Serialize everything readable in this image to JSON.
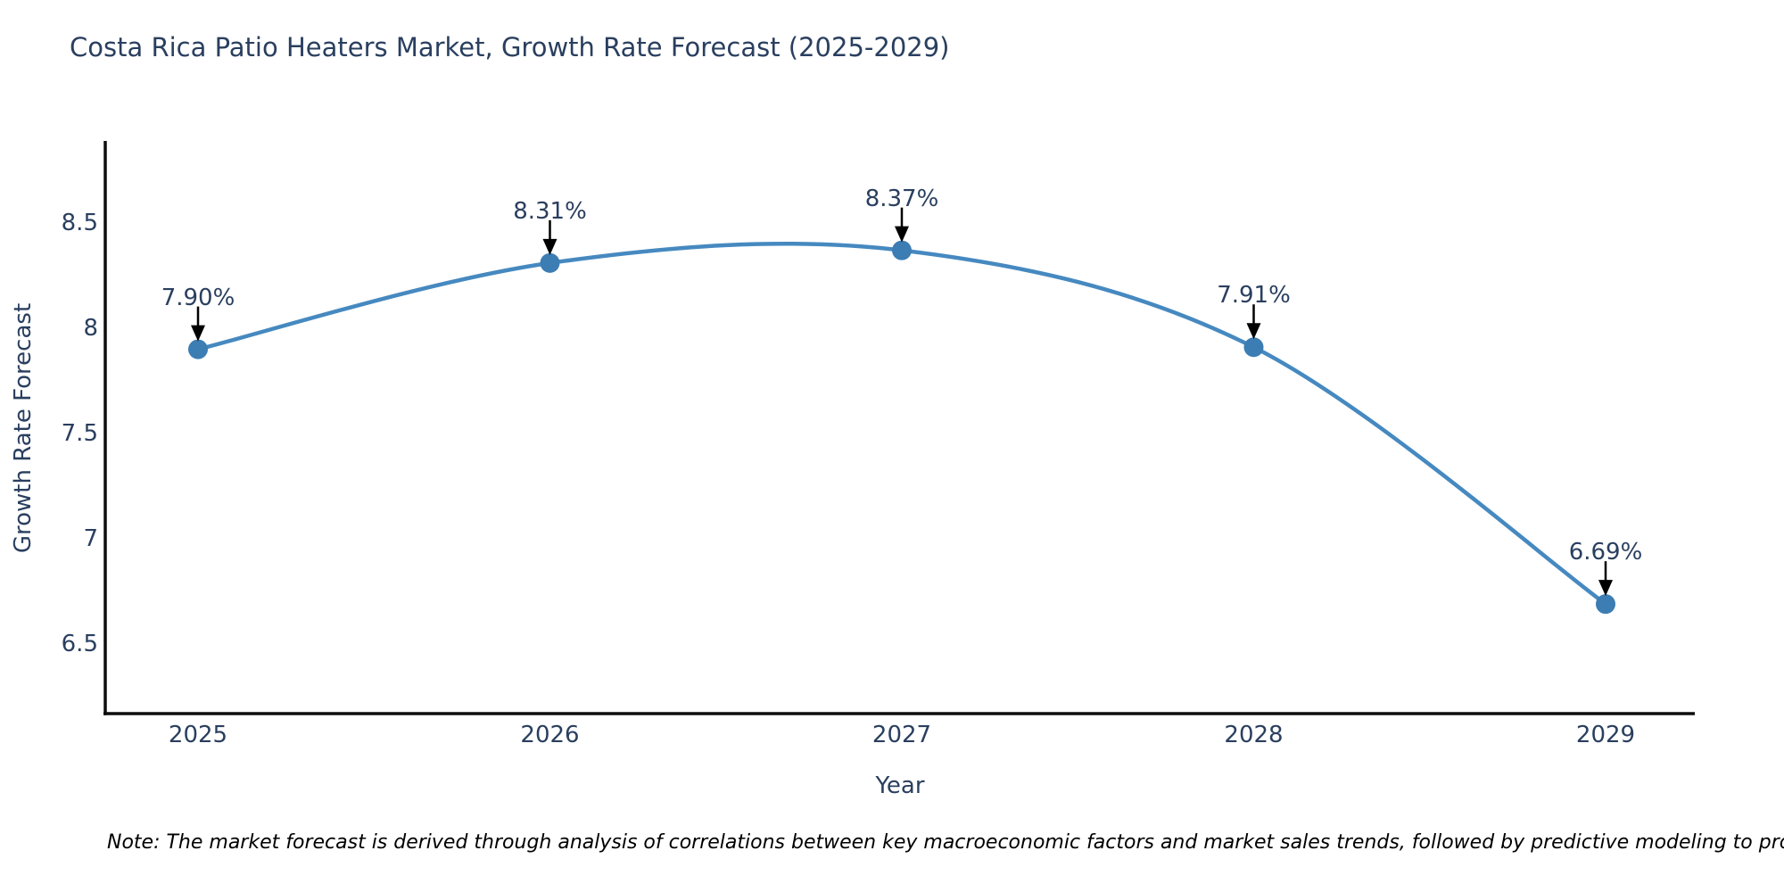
{
  "colors": {
    "line": "#4689c0",
    "marker": "#3c7db3",
    "axis": "#0d0d0d",
    "arrow": "#000000",
    "text": "#2a3f5f",
    "note_text": "#000000",
    "background": "#ffffff"
  },
  "chart_data": {
    "type": "line",
    "title": "Costa Rica Patio Heaters Market, Growth Rate Forecast (2025-2029)",
    "xlabel": "Year",
    "ylabel": "Growth Rate Forecast",
    "x": [
      "2025",
      "2026",
      "2027",
      "2028",
      "2029"
    ],
    "values": [
      7.9,
      8.31,
      8.37,
      7.91,
      6.69
    ],
    "point_labels": [
      "7.90%",
      "8.31%",
      "8.37%",
      "7.91%",
      "6.69%"
    ],
    "line_shape": "spline",
    "markers": true,
    "grid": false,
    "legend_visible": false,
    "ytick_labels": [
      "8.5",
      "8",
      "7.5",
      "7",
      "6.5"
    ],
    "ytick_values": [
      8.5,
      8,
      7.5,
      7,
      6.5
    ],
    "ylim": [
      6.2,
      8.92
    ],
    "annotation_style": "black downward arrow from each value label to its data point",
    "note": "Note: The market forecast is derived through analysis of correlations between key macroeconomic factors and market sales trends, followed by predictive modeling to project future sales"
  }
}
